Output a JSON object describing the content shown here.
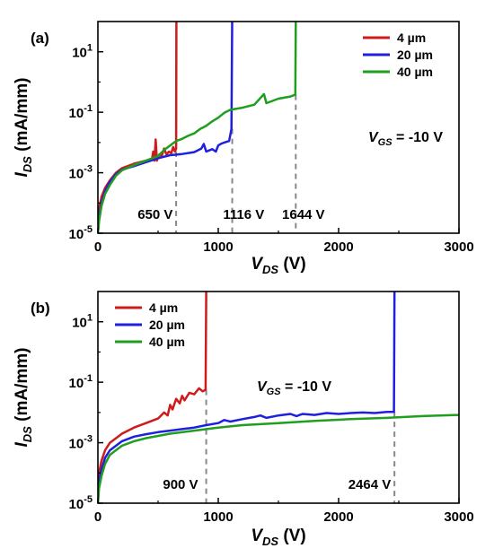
{
  "chart_data": [
    {
      "panel_label": "(a)",
      "type": "line",
      "xlabel": "V",
      "xlabel_sub": "DS",
      "xlabel_unit": "(V)",
      "ylabel": "I",
      "ylabel_sub": "DS",
      "ylabel_unit": "(mA/mm)",
      "xlim": [
        0,
        3000
      ],
      "ylim_log10": [
        -5,
        2
      ],
      "yscale": "log",
      "x_ticks": [
        "0",
        "1000",
        "2000",
        "3000"
      ],
      "y_ticks": [
        {
          "base": "10",
          "exp": "-5",
          "log": -5
        },
        {
          "base": "10",
          "exp": "-3",
          "log": -3
        },
        {
          "base": "10",
          "exp": "-1",
          "log": -1
        },
        {
          "base": "10",
          "exp": "1",
          "log": 1
        }
      ],
      "annotation": {
        "main": "V",
        "sub": "GS",
        "rest": " = -10 V"
      },
      "legend_position": "top-right",
      "series": [
        {
          "name": "4 µm",
          "color": "#cc1c1c",
          "breakdown_v": 650,
          "points": [
            [
              0,
              -5
            ],
            [
              10,
              -4.2
            ],
            [
              30,
              -3.8
            ],
            [
              60,
              -3.5
            ],
            [
              100,
              -3.25
            ],
            [
              150,
              -3.0
            ],
            [
              200,
              -2.85
            ],
            [
              300,
              -2.7
            ],
            [
              400,
              -2.6
            ],
            [
              450,
              -2.55
            ],
            [
              460,
              -2.3
            ],
            [
              470,
              -2.6
            ],
            [
              480,
              -1.9
            ],
            [
              490,
              -2.6
            ],
            [
              510,
              -2.4
            ],
            [
              530,
              -2.45
            ],
            [
              550,
              -2.2
            ],
            [
              570,
              -2.4
            ],
            [
              590,
              -2.3
            ],
            [
              610,
              -2.35
            ],
            [
              625,
              -2.15
            ],
            [
              640,
              -2.3
            ],
            [
              650,
              -2.2
            ],
            [
              652,
              2.0
            ]
          ]
        },
        {
          "name": "20 µm",
          "color": "#1f1fe0",
          "breakdown_v": 1116,
          "points": [
            [
              0,
              -5
            ],
            [
              10,
              -4.5
            ],
            [
              30,
              -4.0
            ],
            [
              60,
              -3.6
            ],
            [
              100,
              -3.3
            ],
            [
              150,
              -3.05
            ],
            [
              200,
              -2.9
            ],
            [
              300,
              -2.78
            ],
            [
              400,
              -2.65
            ],
            [
              500,
              -2.52
            ],
            [
              600,
              -2.42
            ],
            [
              700,
              -2.38
            ],
            [
              800,
              -2.32
            ],
            [
              860,
              -2.2
            ],
            [
              880,
              -2.05
            ],
            [
              900,
              -2.3
            ],
            [
              950,
              -2.22
            ],
            [
              980,
              -2.3
            ],
            [
              1000,
              -2.1
            ],
            [
              1020,
              -2.05
            ],
            [
              1050,
              -2.0
            ],
            [
              1090,
              -1.95
            ],
            [
              1110,
              -1.55
            ],
            [
              1116,
              2.0
            ]
          ]
        },
        {
          "name": "40 µm",
          "color": "#1f9e1f",
          "breakdown_v": 1644,
          "points": [
            [
              0,
              -5
            ],
            [
              10,
              -4.6
            ],
            [
              30,
              -4.1
            ],
            [
              60,
              -3.7
            ],
            [
              100,
              -3.4
            ],
            [
              150,
              -3.1
            ],
            [
              200,
              -2.92
            ],
            [
              300,
              -2.75
            ],
            [
              400,
              -2.6
            ],
            [
              500,
              -2.45
            ],
            [
              550,
              -2.25
            ],
            [
              600,
              -2.1
            ],
            [
              650,
              -1.95
            ],
            [
              700,
              -1.88
            ],
            [
              750,
              -1.78
            ],
            [
              800,
              -1.7
            ],
            [
              850,
              -1.55
            ],
            [
              900,
              -1.45
            ],
            [
              950,
              -1.3
            ],
            [
              1000,
              -1.18
            ],
            [
              1050,
              -1.02
            ],
            [
              1100,
              -0.92
            ],
            [
              1200,
              -0.85
            ],
            [
              1300,
              -0.75
            ],
            [
              1380,
              -0.4
            ],
            [
              1400,
              -0.7
            ],
            [
              1500,
              -0.55
            ],
            [
              1600,
              -0.48
            ],
            [
              1640,
              -0.42
            ],
            [
              1644,
              2.0
            ]
          ]
        }
      ],
      "markers": [
        {
          "x": 650,
          "label": "650 V",
          "label_at": 330
        },
        {
          "x": 1116,
          "label": "1116 V",
          "label_at": 1040
        },
        {
          "x": 1644,
          "label": "1644 V",
          "label_at": 1530
        }
      ]
    },
    {
      "panel_label": "(b)",
      "type": "line",
      "xlabel": "V",
      "xlabel_sub": "DS",
      "xlabel_unit": "(V)",
      "ylabel": "I",
      "ylabel_sub": "DS",
      "ylabel_unit": "(mA/mm)",
      "xlim": [
        0,
        3000
      ],
      "ylim_log10": [
        -5,
        2
      ],
      "yscale": "log",
      "x_ticks": [
        "0",
        "1000",
        "2000",
        "3000"
      ],
      "y_ticks": [
        {
          "base": "10",
          "exp": "-5",
          "log": -5
        },
        {
          "base": "10",
          "exp": "-3",
          "log": -3
        },
        {
          "base": "10",
          "exp": "-1",
          "log": -1
        },
        {
          "base": "10",
          "exp": "1",
          "log": 1
        }
      ],
      "annotation": {
        "main": "V",
        "sub": "GS",
        "rest": " = -10 V"
      },
      "legend_position": "top-left",
      "series": [
        {
          "name": "4 µm",
          "color": "#cc1c1c",
          "breakdown_v": 900,
          "points": [
            [
              0,
              -5
            ],
            [
              10,
              -4.0
            ],
            [
              30,
              -3.6
            ],
            [
              60,
              -3.25
            ],
            [
              100,
              -3.0
            ],
            [
              200,
              -2.7
            ],
            [
              300,
              -2.5
            ],
            [
              400,
              -2.35
            ],
            [
              500,
              -2.2
            ],
            [
              550,
              -2.0
            ],
            [
              580,
              -2.1
            ],
            [
              600,
              -1.75
            ],
            [
              620,
              -1.9
            ],
            [
              650,
              -1.55
            ],
            [
              680,
              -1.7
            ],
            [
              700,
              -1.45
            ],
            [
              720,
              -1.6
            ],
            [
              760,
              -1.35
            ],
            [
              800,
              -1.4
            ],
            [
              840,
              -1.2
            ],
            [
              870,
              -1.3
            ],
            [
              895,
              -1.25
            ],
            [
              900,
              2.0
            ]
          ]
        },
        {
          "name": "20 µm",
          "color": "#1f1fe0",
          "breakdown_v": 2464,
          "points": [
            [
              0,
              -5
            ],
            [
              10,
              -4.3
            ],
            [
              30,
              -3.9
            ],
            [
              60,
              -3.5
            ],
            [
              100,
              -3.25
            ],
            [
              200,
              -2.95
            ],
            [
              300,
              -2.8
            ],
            [
              400,
              -2.72
            ],
            [
              500,
              -2.65
            ],
            [
              600,
              -2.6
            ],
            [
              700,
              -2.55
            ],
            [
              800,
              -2.5
            ],
            [
              900,
              -2.42
            ],
            [
              1000,
              -2.35
            ],
            [
              1050,
              -2.25
            ],
            [
              1100,
              -2.3
            ],
            [
              1200,
              -2.22
            ],
            [
              1300,
              -2.15
            ],
            [
              1350,
              -2.1
            ],
            [
              1400,
              -2.18
            ],
            [
              1500,
              -2.1
            ],
            [
              1600,
              -2.05
            ],
            [
              1650,
              -2.12
            ],
            [
              1700,
              -2.05
            ],
            [
              1800,
              -2.08
            ],
            [
              1900,
              -2.02
            ],
            [
              2000,
              -2.05
            ],
            [
              2100,
              -2.02
            ],
            [
              2200,
              -2.0
            ],
            [
              2300,
              -2.02
            ],
            [
              2400,
              -1.98
            ],
            [
              2460,
              -1.98
            ],
            [
              2464,
              2.0
            ]
          ]
        },
        {
          "name": "40 µm",
          "color": "#1f9e1f",
          "breakdown_v": null,
          "points": [
            [
              0,
              -5
            ],
            [
              10,
              -4.5
            ],
            [
              30,
              -4.1
            ],
            [
              60,
              -3.7
            ],
            [
              100,
              -3.4
            ],
            [
              200,
              -3.1
            ],
            [
              300,
              -2.95
            ],
            [
              400,
              -2.85
            ],
            [
              600,
              -2.7
            ],
            [
              800,
              -2.6
            ],
            [
              1000,
              -2.5
            ],
            [
              1200,
              -2.42
            ],
            [
              1500,
              -2.35
            ],
            [
              1800,
              -2.28
            ],
            [
              2100,
              -2.22
            ],
            [
              2400,
              -2.18
            ],
            [
              2700,
              -2.12
            ],
            [
              3000,
              -2.08
            ]
          ]
        }
      ],
      "markers": [
        {
          "x": 900,
          "label": "900 V",
          "label_at": 540
        },
        {
          "x": 2464,
          "label": "2464 V",
          "label_at": 2080
        }
      ]
    }
  ]
}
